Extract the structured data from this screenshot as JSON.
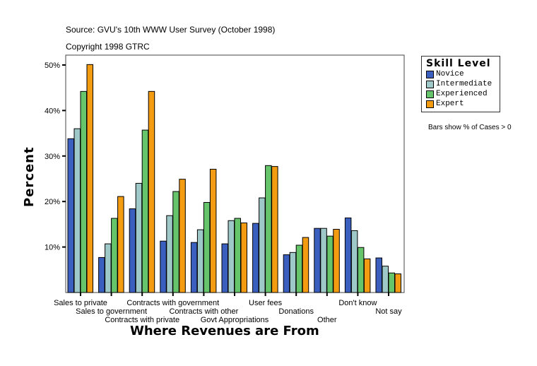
{
  "header": {
    "source": "Source: GVU's 10th WWW User Survey (October 1998)",
    "copyright": "Copyright 1998 GTRC"
  },
  "note": "Bars show % of Cases > 0",
  "chart_data": {
    "type": "bar",
    "xlabel": "Where Revenues are From",
    "ylabel": "Percent",
    "ylim": [
      0,
      50
    ],
    "yticks": [
      "10%",
      "20%",
      "30%",
      "40%",
      "50%"
    ],
    "yticks_values": [
      10,
      20,
      30,
      40,
      50
    ],
    "grid": false,
    "legend_title": "Skill Level",
    "legend_position": "right",
    "categories": [
      "Sales to private",
      "Sales to government",
      "Contracts with private",
      "Contracts with government",
      "Contracts with other",
      "Govt Appropriations",
      "User fees",
      "Donations",
      "Other",
      "Don't know",
      "Not say"
    ],
    "series": [
      {
        "name": "Novice",
        "color": "#3a5fbf",
        "values": [
          33.8,
          7.7,
          18.4,
          11.3,
          11.0,
          10.7,
          15.2,
          8.3,
          14.1,
          16.4,
          7.6
        ]
      },
      {
        "name": "Intermediate",
        "color": "#9fc8c8",
        "values": [
          36.0,
          10.7,
          24.0,
          16.9,
          13.8,
          15.8,
          20.8,
          8.8,
          14.1,
          13.6,
          5.8
        ]
      },
      {
        "name": "Experienced",
        "color": "#66c46a",
        "values": [
          44.2,
          16.3,
          35.7,
          22.2,
          19.8,
          16.3,
          27.9,
          10.4,
          12.4,
          9.9,
          4.3
        ]
      },
      {
        "name": "Expert",
        "color": "#f39c12",
        "values": [
          50.1,
          21.1,
          44.2,
          24.9,
          27.1,
          15.3,
          27.7,
          12.1,
          13.9,
          7.4,
          4.1
        ]
      }
    ]
  }
}
